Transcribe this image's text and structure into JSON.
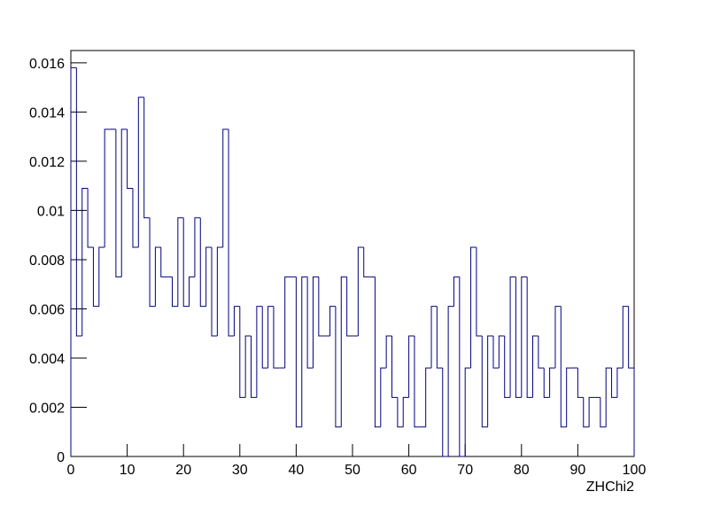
{
  "chart_data": {
    "type": "histogram",
    "x_label": "ZHChi2",
    "bins": [
      0,
      1,
      2,
      3,
      4,
      5,
      6,
      7,
      8,
      9,
      10,
      11,
      12,
      13,
      14,
      15,
      16,
      17,
      18,
      19,
      20,
      21,
      22,
      23,
      24,
      25,
      26,
      27,
      28,
      29,
      30,
      31,
      32,
      33,
      34,
      35,
      36,
      37,
      38,
      39,
      40,
      41,
      42,
      43,
      44,
      45,
      46,
      47,
      48,
      49,
      50,
      51,
      52,
      53,
      54,
      55,
      56,
      57,
      58,
      59,
      60,
      61,
      62,
      63,
      64,
      65,
      66,
      67,
      68,
      69,
      70,
      71,
      72,
      73,
      74,
      75,
      76,
      77,
      78,
      79,
      80,
      81,
      82,
      83,
      84,
      85,
      86,
      87,
      88,
      89,
      90,
      91,
      92,
      93,
      94,
      95,
      96,
      97,
      98,
      99,
      100
    ],
    "values": [
      0.0158,
      0.0049,
      0.0109,
      0.0085,
      0.0061,
      0.0085,
      0.0133,
      0.0133,
      0.0073,
      0.0133,
      0.0109,
      0.0085,
      0.0146,
      0.0097,
      0.0061,
      0.0085,
      0.0073,
      0.0073,
      0.0061,
      0.0097,
      0.0061,
      0.0073,
      0.0097,
      0.0061,
      0.0085,
      0.0049,
      0.0085,
      0.0133,
      0.0049,
      0.0061,
      0.0024,
      0.0049,
      0.0024,
      0.0061,
      0.0036,
      0.0061,
      0.0036,
      0.0036,
      0.0073,
      0.0073,
      0.0012,
      0.0073,
      0.0036,
      0.0073,
      0.0049,
      0.0049,
      0.0061,
      0.0012,
      0.0073,
      0.0049,
      0.0049,
      0.0085,
      0.0073,
      0.0073,
      0.0012,
      0.0036,
      0.0049,
      0.0024,
      0.0012,
      0.0024,
      0.0049,
      0.0012,
      0.0012,
      0.0036,
      0.0061,
      0.0036,
      0,
      0.0061,
      0.0073,
      0,
      0.0036,
      0.0085,
      0.0049,
      0.0012,
      0.0049,
      0.0036,
      0.0049,
      0.0024,
      0.0073,
      0.0024,
      0.0073,
      0.0024,
      0.0049,
      0.0036,
      0.0024,
      0.0036,
      0.0061,
      0.0012,
      0.0036,
      0.0036,
      0.0024,
      0.0012,
      0.0024,
      0.0024,
      0.0012,
      0.0036,
      0.0024,
      0.0036,
      0.0061,
      0.0036
    ],
    "color": "#000080",
    "xlim": [
      0,
      100
    ],
    "xticks": [
      0,
      10,
      20,
      30,
      40,
      50,
      60,
      70,
      80,
      90,
      100
    ],
    "ylim": [
      0,
      0.0165
    ],
    "yticks": [
      0,
      0.002,
      0.004,
      0.006,
      0.008,
      0.01,
      0.012,
      0.014,
      0.016
    ]
  }
}
